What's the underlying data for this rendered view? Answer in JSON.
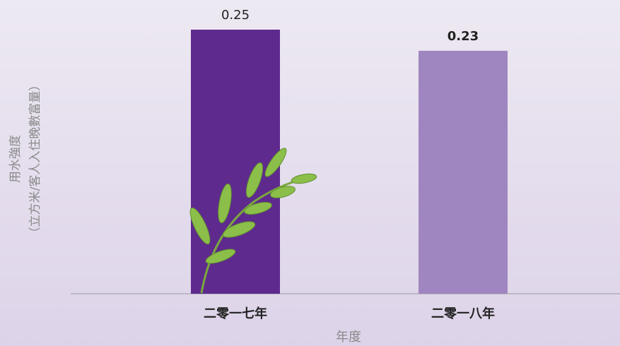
{
  "chart_data": {
    "type": "bar",
    "y_label": [
      "用水強度",
      "（立方米/客人入住晚數富量）"
    ],
    "x_label": "年度",
    "categories": [
      "二零一七年",
      "二零一八年"
    ],
    "values": [
      0.25,
      0.23
    ],
    "colors": [
      "#5f2a8d",
      "#a086c0"
    ]
  }
}
